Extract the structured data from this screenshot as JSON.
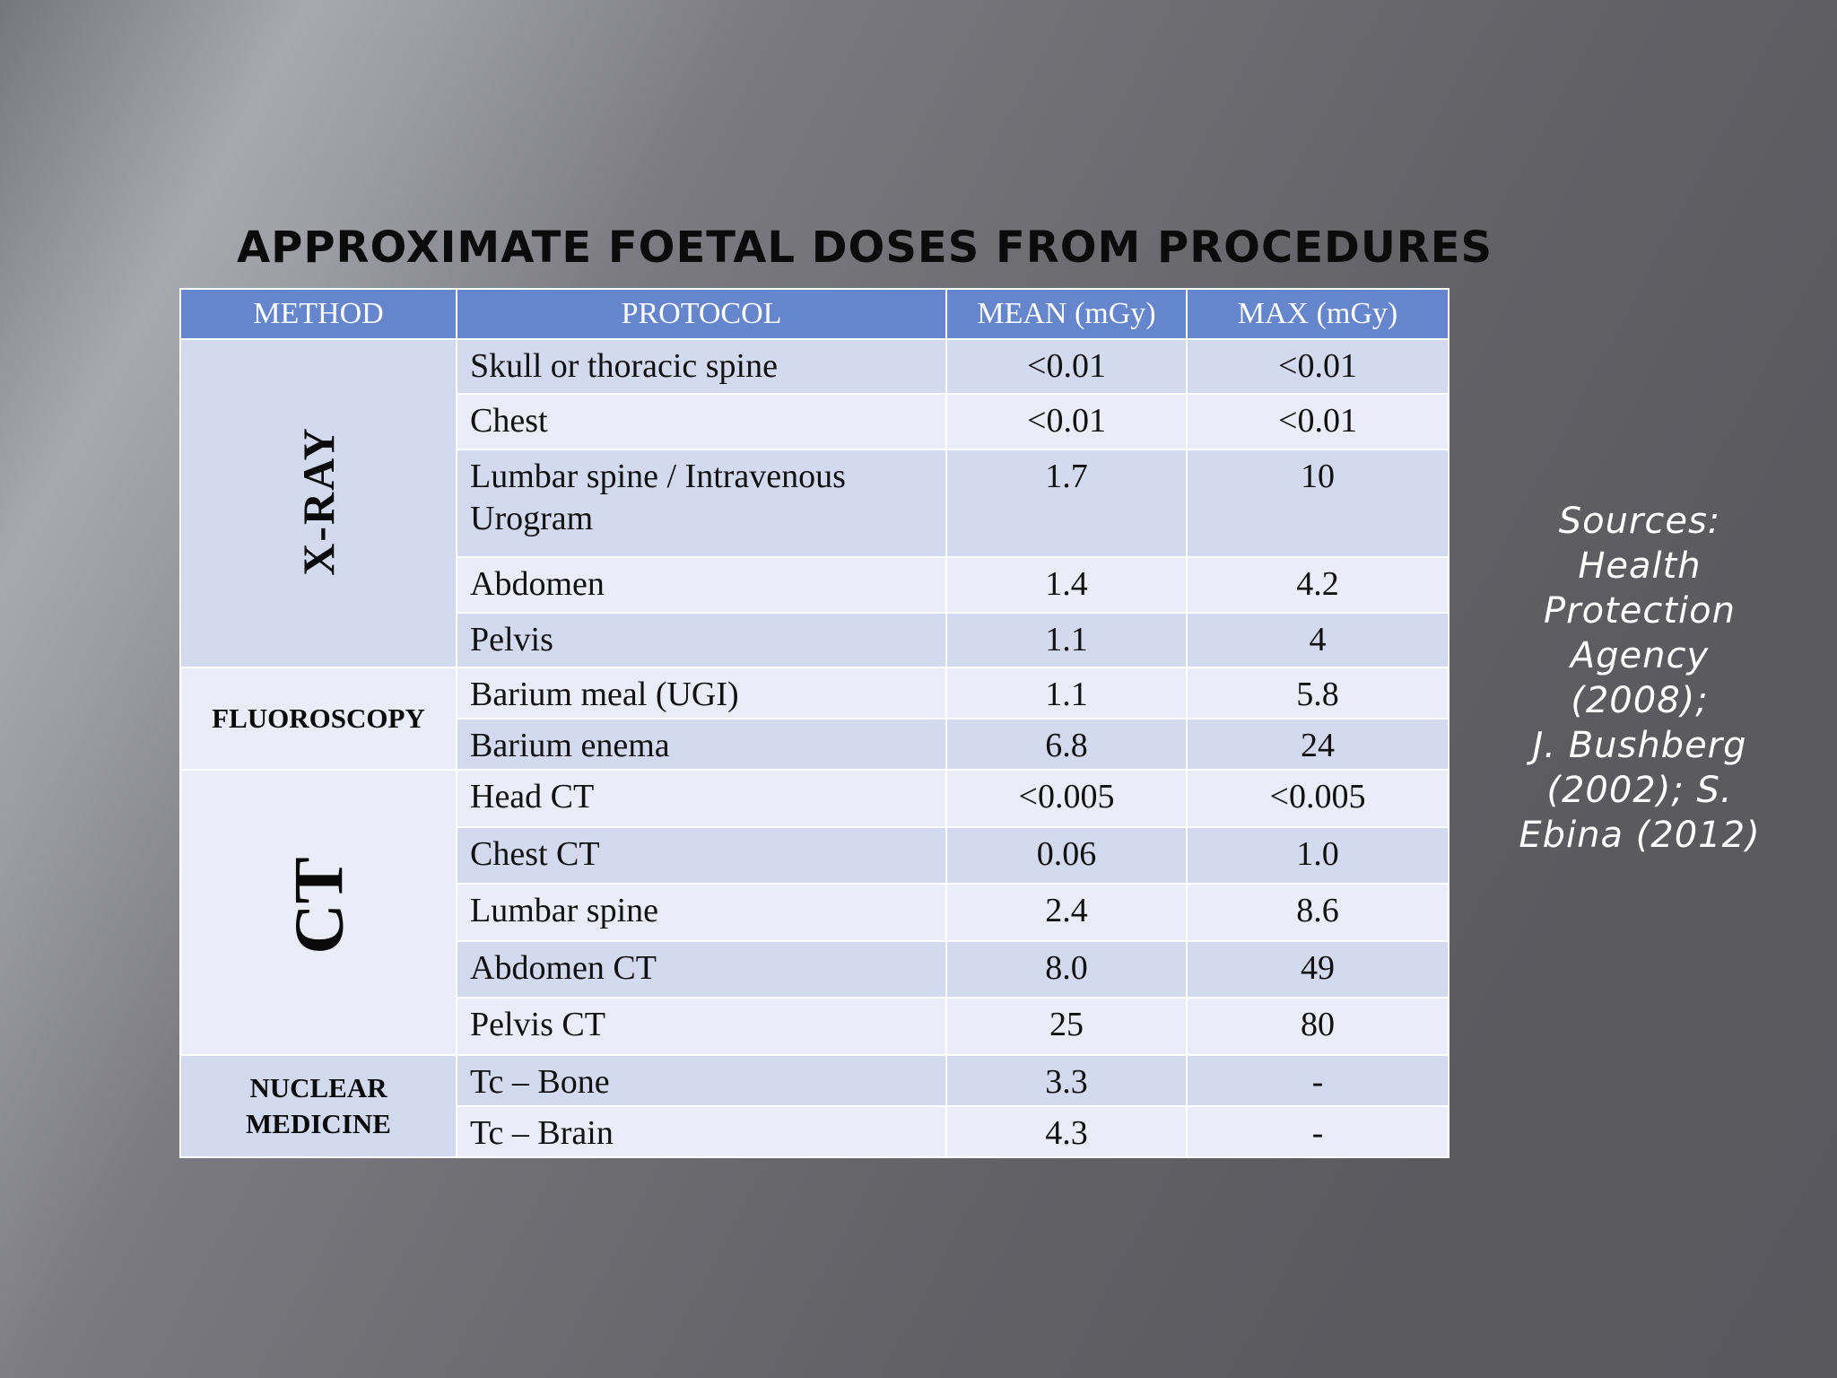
{
  "title": "APPROXIMATE FOETAL DOSES FROM PROCEDURES",
  "table": {
    "headers": [
      "METHOD",
      "PROTOCOL",
      "MEAN (mGy)",
      "MAX (mGy)"
    ],
    "groups": [
      {
        "method": "X-RAY",
        "rows": [
          {
            "protocol": "Skull or thoracic spine",
            "mean": "<0.01",
            "max": "<0.01"
          },
          {
            "protocol": "Chest",
            "mean": "<0.01",
            "max": "<0.01"
          },
          {
            "protocol": "Lumbar spine / Intravenous Urogram",
            "mean": "1.7",
            "max": "10"
          },
          {
            "protocol": "Abdomen",
            "mean": "1.4",
            "max": "4.2"
          },
          {
            "protocol": "Pelvis",
            "mean": "1.1",
            "max": "4"
          }
        ]
      },
      {
        "method": "FLUOROSCOPY",
        "rows": [
          {
            "protocol": "Barium meal (UGI)",
            "mean": "1.1",
            "max": "5.8"
          },
          {
            "protocol": "Barium enema",
            "mean": "6.8",
            "max": "24"
          }
        ]
      },
      {
        "method": "CT",
        "rows": [
          {
            "protocol": "Head CT",
            "mean": "<0.005",
            "max": "<0.005"
          },
          {
            "protocol": "Chest CT",
            "mean": "0.06",
            "max": "1.0"
          },
          {
            "protocol": "Lumbar spine",
            "mean": "2.4",
            "max": "8.6"
          },
          {
            "protocol": "Abdomen CT",
            "mean": "8.0",
            "max": "49"
          },
          {
            "protocol": "Pelvis CT",
            "mean": "25",
            "max": "80"
          }
        ]
      },
      {
        "method": "NUCLEAR MEDICINE",
        "rows": [
          {
            "protocol": "Tc – Bone",
            "mean": "3.3",
            "max": "-"
          },
          {
            "protocol": "Tc – Brain",
            "mean": "4.3",
            "max": "-"
          }
        ]
      }
    ]
  },
  "sources": "Sources:\nHealth\nProtection\nAgency\n(2008);\nJ. Bushberg\n(2002); S.\nEbina (2012)",
  "colors": {
    "header_bg": "#6585cc",
    "row_dark": "#d3d9ef",
    "row_light": "#eaedf7"
  }
}
